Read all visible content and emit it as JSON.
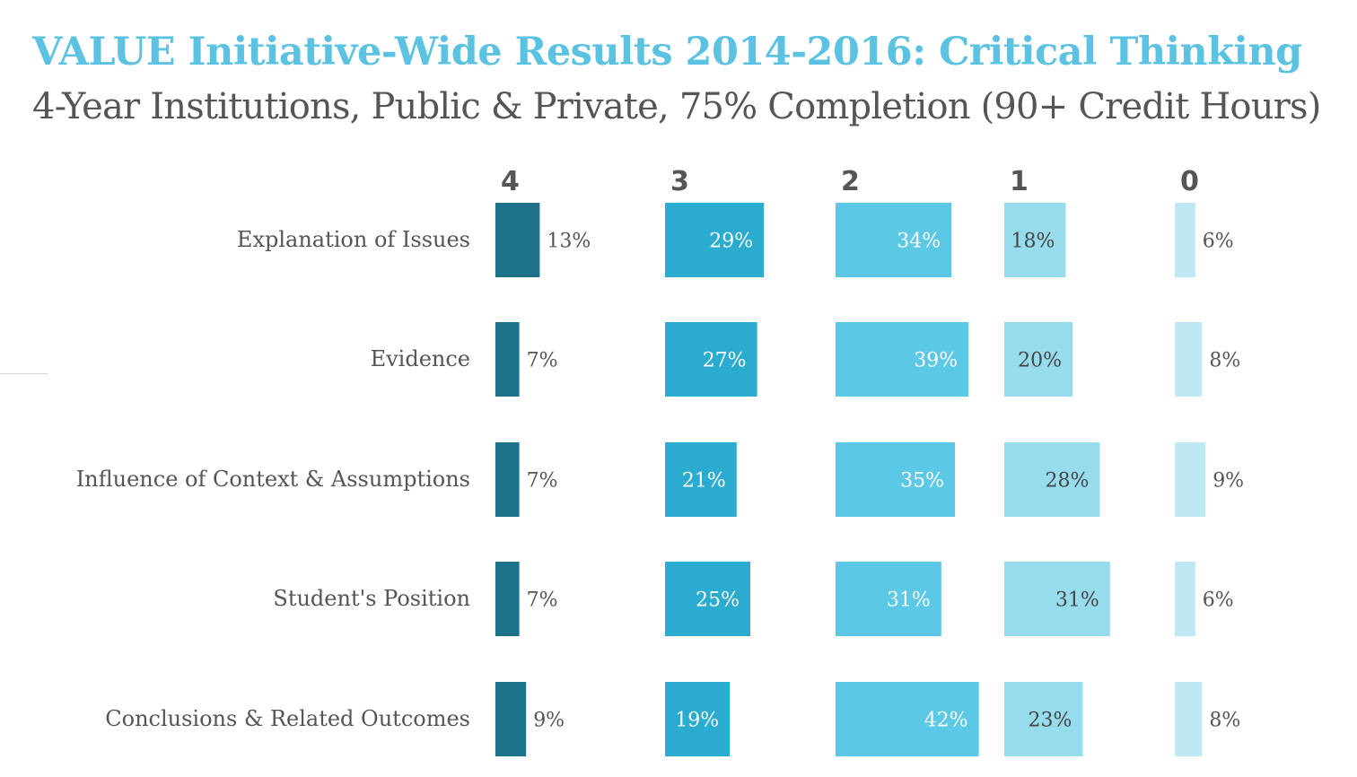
{
  "title": "VALUE Initiative-Wide Results 2014-2016: Critical Thinking",
  "subtitle": "4-Year Institutions, Public & Private, 75% Completion (90+ Credit Hours)",
  "chart_data": {
    "type": "bar",
    "layout": "small-multiples horizontal bars by score level",
    "levels": [
      "4",
      "3",
      "2",
      "1",
      "0"
    ],
    "level_colors": [
      "#1d7289",
      "#2aabd0",
      "#5bc8e5",
      "#97dced",
      "#bee9f4"
    ],
    "label_colors": [
      "#555555",
      "#ffffff",
      "#ffffff",
      "#444444",
      "#444444"
    ],
    "categories": [
      "Explanation of Issues",
      "Evidence",
      "Influence of Context & Assumptions",
      "Student's Position",
      "Conclusions & Related Outcomes"
    ],
    "series": [
      {
        "name": "4",
        "values": [
          13,
          7,
          7,
          7,
          9
        ],
        "labels": [
          "13%",
          "7%",
          "7%",
          "7%",
          "9%"
        ]
      },
      {
        "name": "3",
        "values": [
          29,
          27,
          21,
          25,
          19
        ],
        "labels": [
          "29%",
          "27%",
          "21%",
          "25%",
          "19%"
        ]
      },
      {
        "name": "2",
        "values": [
          34,
          39,
          35,
          31,
          42
        ],
        "labels": [
          "34%",
          "39%",
          "35%",
          "31%",
          "42%"
        ]
      },
      {
        "name": "1",
        "values": [
          18,
          20,
          28,
          31,
          23
        ],
        "labels": [
          "18%",
          "20%",
          "28%",
          "31%",
          "23%"
        ]
      },
      {
        "name": "0",
        "values": [
          6,
          8,
          9,
          6,
          8
        ],
        "labels": [
          "6%",
          "8%",
          "9%",
          "6%",
          "8%"
        ]
      }
    ],
    "units": "percent"
  }
}
